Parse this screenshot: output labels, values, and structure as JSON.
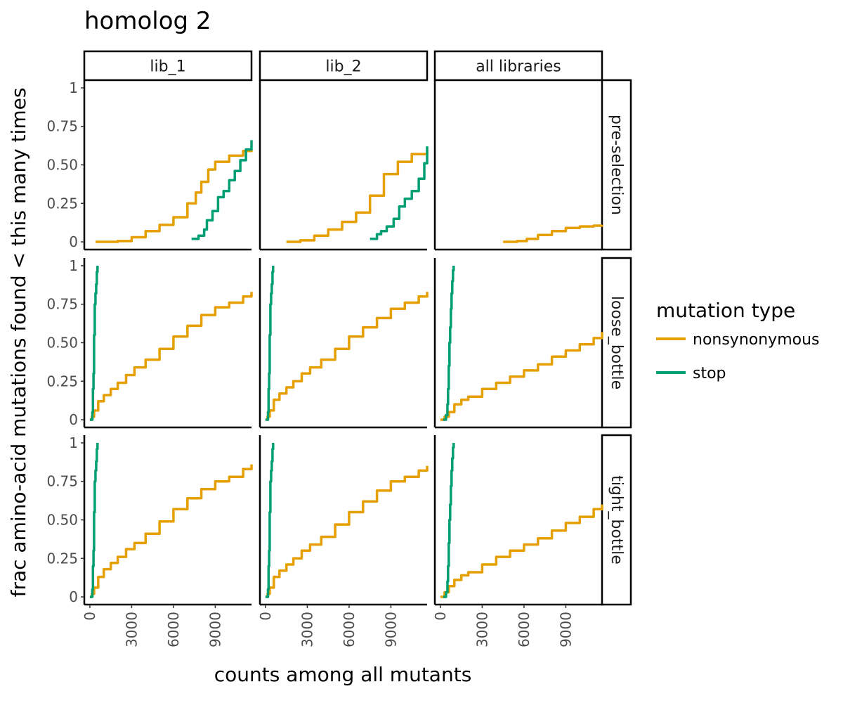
{
  "chart_data": {
    "type": "line",
    "title": "homolog 2",
    "xlabel": "counts among all mutants",
    "ylabel": "frac amino-acid mutations found < this many times",
    "xlim": [
      -400,
      11600
    ],
    "ylim": [
      -0.05,
      1.05
    ],
    "x_ticks": [
      0,
      3000,
      6000,
      9000
    ],
    "x_tick_labels": [
      "0",
      "3000",
      "6000",
      "9000"
    ],
    "y_ticks": [
      0,
      0.25,
      0.5,
      0.75,
      1
    ],
    "y_tick_labels": [
      "0",
      "0.25",
      "0.50",
      "0.75",
      "1"
    ],
    "grid": false,
    "column_facets": [
      "lib_1",
      "lib_2",
      "all libraries"
    ],
    "row_facets": [
      "pre-selection",
      "loose_bottle",
      "tight_bottle"
    ],
    "legend": {
      "title": "mutation type",
      "placement": "right",
      "entries": [
        {
          "name": "nonsynonymous",
          "color": "#E69F00"
        },
        {
          "name": "stop",
          "color": "#009E73"
        }
      ]
    },
    "panels": [
      {
        "row": "pre-selection",
        "col": "lib_1",
        "series": [
          {
            "name": "nonsynonymous",
            "x": [
              400,
              2000,
              3000,
              4000,
              5000,
              6000,
              7000,
              7600,
              8000,
              8500,
              9000,
              10000,
              11000,
              11600
            ],
            "y": [
              0,
              0.005,
              0.03,
              0.07,
              0.11,
              0.16,
              0.25,
              0.32,
              0.39,
              0.47,
              0.52,
              0.56,
              0.59,
              0.6
            ]
          },
          {
            "name": "stop",
            "x": [
              7300,
              7800,
              8200,
              8400,
              8800,
              9200,
              9600,
              10000,
              10400,
              10800,
              11200,
              11600
            ],
            "y": [
              0.02,
              0.04,
              0.08,
              0.14,
              0.2,
              0.29,
              0.33,
              0.4,
              0.46,
              0.53,
              0.6,
              0.66
            ]
          }
        ]
      },
      {
        "row": "pre-selection",
        "col": "lib_2",
        "series": [
          {
            "name": "nonsynonymous",
            "x": [
              1500,
              2500,
              3500,
              4500,
              5500,
              6500,
              7500,
              8500,
              9500,
              10500,
              11600
            ],
            "y": [
              0,
              0.01,
              0.04,
              0.08,
              0.13,
              0.19,
              0.3,
              0.44,
              0.52,
              0.57,
              0.6
            ]
          },
          {
            "name": "stop",
            "x": [
              7500,
              8000,
              8300,
              8700,
              9200,
              9600,
              10000,
              10500,
              11000,
              11400,
              11600
            ],
            "y": [
              0.02,
              0.05,
              0.07,
              0.1,
              0.15,
              0.23,
              0.28,
              0.33,
              0.41,
              0.51,
              0.62
            ]
          }
        ]
      },
      {
        "row": "pre-selection",
        "col": "all libraries",
        "series": [
          {
            "name": "nonsynonymous",
            "x": [
              4500,
              5500,
              6200,
              7000,
              8000,
              9000,
              10000,
              11000,
              11600
            ],
            "y": [
              0,
              0.005,
              0.02,
              0.045,
              0.07,
              0.09,
              0.1,
              0.105,
              0.11
            ]
          }
        ]
      },
      {
        "row": "loose_bottle",
        "col": "lib_1",
        "series": [
          {
            "name": "nonsynonymous",
            "x": [
              0,
              150,
              300,
              600,
              1000,
              1500,
              2000,
              2600,
              3200,
              4000,
              5000,
              6000,
              7000,
              8000,
              9000,
              10000,
              11000,
              11600
            ],
            "y": [
              0,
              0.02,
              0.06,
              0.12,
              0.16,
              0.2,
              0.24,
              0.29,
              0.34,
              0.39,
              0.46,
              0.54,
              0.61,
              0.68,
              0.73,
              0.76,
              0.8,
              0.83
            ]
          },
          {
            "name": "stop",
            "x": [
              0,
              180,
              220,
              260,
              300,
              350,
              400,
              450,
              500,
              550
            ],
            "y": [
              0,
              0.05,
              0.2,
              0.3,
              0.55,
              0.75,
              0.82,
              0.88,
              0.96,
              1
            ]
          }
        ]
      },
      {
        "row": "loose_bottle",
        "col": "lib_2",
        "series": [
          {
            "name": "nonsynonymous",
            "x": [
              0,
              150,
              300,
              600,
              1000,
              1500,
              2000,
              2600,
              3200,
              4000,
              5000,
              6000,
              7000,
              8000,
              9000,
              10000,
              11000,
              11600
            ],
            "y": [
              0,
              0.02,
              0.06,
              0.13,
              0.17,
              0.21,
              0.25,
              0.3,
              0.34,
              0.39,
              0.46,
              0.54,
              0.6,
              0.66,
              0.72,
              0.76,
              0.8,
              0.83
            ]
          },
          {
            "name": "stop",
            "x": [
              0,
              180,
              220,
              260,
              300,
              350,
              400,
              450,
              500,
              550
            ],
            "y": [
              0,
              0.05,
              0.2,
              0.3,
              0.55,
              0.75,
              0.82,
              0.88,
              0.96,
              1
            ]
          }
        ]
      },
      {
        "row": "loose_bottle",
        "col": "all libraries",
        "series": [
          {
            "name": "nonsynonymous",
            "x": [
              0,
              300,
              600,
              1000,
              1500,
              2000,
              3000,
              4000,
              5000,
              6000,
              7000,
              8000,
              9000,
              10000,
              11000,
              11600
            ],
            "y": [
              0,
              0.02,
              0.05,
              0.1,
              0.13,
              0.15,
              0.2,
              0.24,
              0.28,
              0.32,
              0.36,
              0.41,
              0.45,
              0.49,
              0.53,
              0.57
            ]
          },
          {
            "name": "stop",
            "x": [
              200,
              400,
              500,
              550,
              600,
              650,
              700,
              750,
              800,
              850,
              900,
              950
            ],
            "y": [
              0,
              0.03,
              0.1,
              0.2,
              0.35,
              0.5,
              0.6,
              0.72,
              0.82,
              0.9,
              0.97,
              1
            ]
          }
        ]
      },
      {
        "row": "tight_bottle",
        "col": "lib_1",
        "series": [
          {
            "name": "nonsynonymous",
            "x": [
              0,
              150,
              300,
              600,
              1000,
              1500,
              2000,
              2600,
              3200,
              4000,
              5000,
              6000,
              7000,
              8000,
              9000,
              10000,
              11000,
              11600
            ],
            "y": [
              0,
              0.02,
              0.06,
              0.13,
              0.18,
              0.22,
              0.26,
              0.31,
              0.35,
              0.41,
              0.49,
              0.57,
              0.64,
              0.7,
              0.75,
              0.78,
              0.83,
              0.86
            ]
          },
          {
            "name": "stop",
            "x": [
              0,
              180,
              220,
              260,
              300,
              350,
              400,
              450,
              500,
              550
            ],
            "y": [
              0,
              0.05,
              0.2,
              0.3,
              0.55,
              0.75,
              0.82,
              0.88,
              0.96,
              1
            ]
          }
        ]
      },
      {
        "row": "tight_bottle",
        "col": "lib_2",
        "series": [
          {
            "name": "nonsynonymous",
            "x": [
              0,
              150,
              300,
              600,
              1000,
              1500,
              2000,
              2600,
              3200,
              4000,
              5000,
              6000,
              7000,
              8000,
              9000,
              10000,
              11000,
              11600
            ],
            "y": [
              0,
              0.02,
              0.06,
              0.13,
              0.17,
              0.21,
              0.25,
              0.3,
              0.34,
              0.39,
              0.47,
              0.55,
              0.62,
              0.69,
              0.75,
              0.78,
              0.82,
              0.85
            ]
          },
          {
            "name": "stop",
            "x": [
              0,
              180,
              220,
              260,
              300,
              350,
              400,
              450,
              500,
              550
            ],
            "y": [
              0,
              0.05,
              0.2,
              0.3,
              0.55,
              0.75,
              0.82,
              0.88,
              0.96,
              1
            ]
          }
        ]
      },
      {
        "row": "tight_bottle",
        "col": "all libraries",
        "series": [
          {
            "name": "nonsynonymous",
            "x": [
              0,
              300,
              600,
              1000,
              1500,
              2000,
              3000,
              4000,
              5000,
              6000,
              7000,
              8000,
              9000,
              10000,
              11000,
              11600
            ],
            "y": [
              0,
              0.03,
              0.07,
              0.11,
              0.14,
              0.16,
              0.21,
              0.26,
              0.3,
              0.34,
              0.38,
              0.43,
              0.48,
              0.52,
              0.57,
              0.6
            ]
          },
          {
            "name": "stop",
            "x": [
              200,
              400,
              500,
              550,
              600,
              650,
              700,
              750,
              800,
              850,
              900,
              950
            ],
            "y": [
              0,
              0.03,
              0.1,
              0.2,
              0.35,
              0.5,
              0.6,
              0.72,
              0.82,
              0.9,
              0.97,
              1
            ]
          }
        ]
      }
    ]
  }
}
